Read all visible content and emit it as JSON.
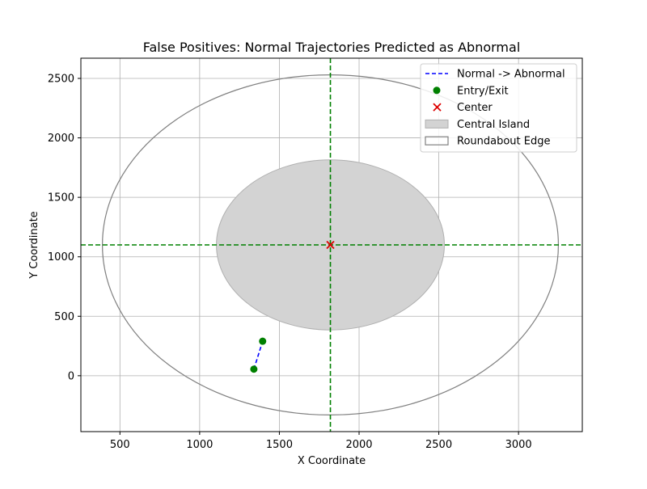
{
  "chart_data": {
    "type": "scatter",
    "title": "False Positives: Normal Trajectories Predicted as Abnormal",
    "xlabel": "X Coordinate",
    "ylabel": "Y Coordinate",
    "xlim": [
      255,
      3400
    ],
    "ylim": [
      -470,
      2670
    ],
    "xticks": [
      500,
      1000,
      1500,
      2000,
      2500,
      3000
    ],
    "yticks": [
      0,
      500,
      1000,
      1500,
      2000,
      2500
    ],
    "grid": true,
    "legend_position": "top-right",
    "center": {
      "x": 1820,
      "y": 1100
    },
    "central_island": {
      "cx": 1820,
      "cy": 1100,
      "rx": 715,
      "ry": 715
    },
    "roundabout_edge": {
      "cx": 1820,
      "cy": 1100,
      "rx": 1430,
      "ry": 1430
    },
    "reference_lines": {
      "x": 1820,
      "y": 1100
    },
    "series": [
      {
        "name": "Normal -> Abnormal",
        "x": [
          1340,
          1395
        ],
        "y": [
          55,
          290
        ]
      }
    ],
    "entry_exit_points": [
      {
        "x": 1340,
        "y": 55
      },
      {
        "x": 1395,
        "y": 290
      }
    ],
    "legend": [
      {
        "label": "Normal -> Abnormal",
        "kind": "dashed-line",
        "color": "#0000ff"
      },
      {
        "label": "Entry/Exit",
        "kind": "dot",
        "color": "#008000"
      },
      {
        "label": "Center",
        "kind": "x",
        "color": "#dd0000"
      },
      {
        "label": "Central Island",
        "kind": "filled-patch",
        "color": "#d3d3d3"
      },
      {
        "label": "Roundabout Edge",
        "kind": "outline-patch",
        "color": "#808080"
      }
    ],
    "colors": {
      "trajectory": "#0000ff",
      "entry_exit": "#008000",
      "center": "#dd0000",
      "island_fill": "#d3d3d3",
      "island_edge": "#b0b0b0",
      "edge": "#808080",
      "reference_line": "#008000",
      "grid": "#b0b0b0"
    }
  }
}
